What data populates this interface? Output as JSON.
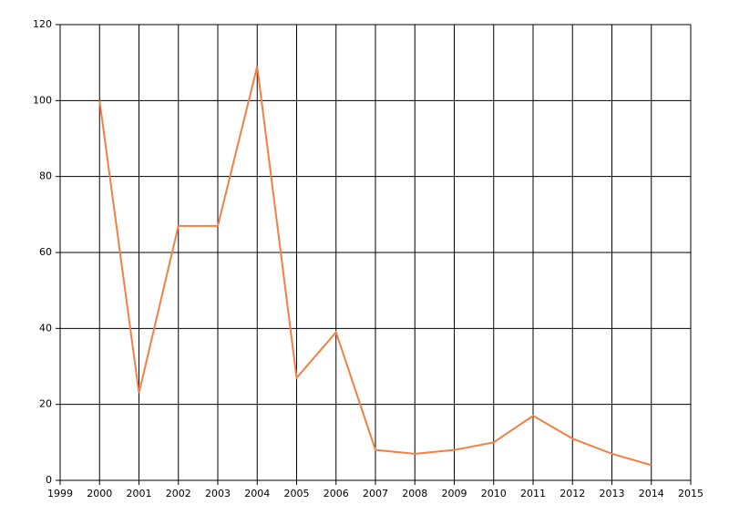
{
  "chart_data": {
    "type": "line",
    "x": [
      2000,
      2001,
      2002,
      2003,
      2004,
      2005,
      2006,
      2007,
      2008,
      2009,
      2010,
      2011,
      2012,
      2013,
      2014
    ],
    "series": [
      {
        "color": "#f47f42",
        "values": [
          100,
          23,
          67,
          67,
          109,
          27,
          39,
          8,
          7,
          8,
          10,
          17,
          11,
          7,
          4
        ]
      }
    ],
    "xlim": [
      1999,
      2015
    ],
    "xticks": [
      1999,
      2000,
      2001,
      2002,
      2003,
      2004,
      2005,
      2006,
      2007,
      2008,
      2009,
      2010,
      2011,
      2012,
      2013,
      2014,
      2015
    ],
    "ylim": [
      0,
      120
    ],
    "yticks": [
      0,
      20,
      40,
      60,
      80,
      100,
      120
    ],
    "grid": true
  }
}
